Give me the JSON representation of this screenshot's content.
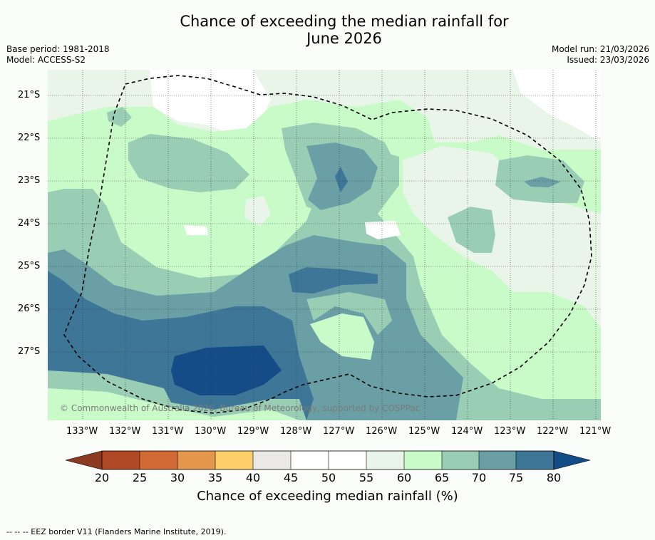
{
  "title_line1": "Chance of exceeding the median rainfall for",
  "title_line2": "June 2026",
  "base_period": "Base period: 1981-2018",
  "model": "Model: ACCESS-S2",
  "model_run": "Model run: 21/03/2026",
  "issued": "Issued: 23/03/2026",
  "copyright": "© Commonwealth of Australia 2026, Bureau of Meteorology, supported by COSPPac",
  "lat_labels": [
    "21°S",
    "22°S",
    "23°S",
    "24°S",
    "25°S",
    "26°S",
    "27°S"
  ],
  "lon_labels": [
    "133°W",
    "132°W",
    "131°W",
    "130°W",
    "129°W",
    "128°W",
    "127°W",
    "126°W",
    "125°W",
    "124°W",
    "123°W",
    "122°W",
    "121°W"
  ],
  "colorbar": {
    "title": "Chance of exceeding median rainfall (%)",
    "ticks": [
      "20",
      "25",
      "30",
      "35",
      "40",
      "45",
      "50",
      "55",
      "60",
      "65",
      "70",
      "75",
      "80"
    ],
    "colors": {
      "below20": "#8c3a22",
      "20-25": "#b04a26",
      "25-30": "#d26a35",
      "30-35": "#e4974c",
      "35-40": "#fdcf6b",
      "40-45": "#ebe9e6",
      "45-50": "#ffffff",
      "50-55": "#ffffff",
      "55-60": "#eaf5ea",
      "60-65": "#c9fbc9",
      "65-70": "#99ceb5",
      "70-75": "#6a9fa5",
      "75-80": "#3e7698",
      "above80": "#134c87"
    }
  },
  "footer": "-- -- -- EEZ border V11 (Flanders Marine Institute, 2019)."
}
